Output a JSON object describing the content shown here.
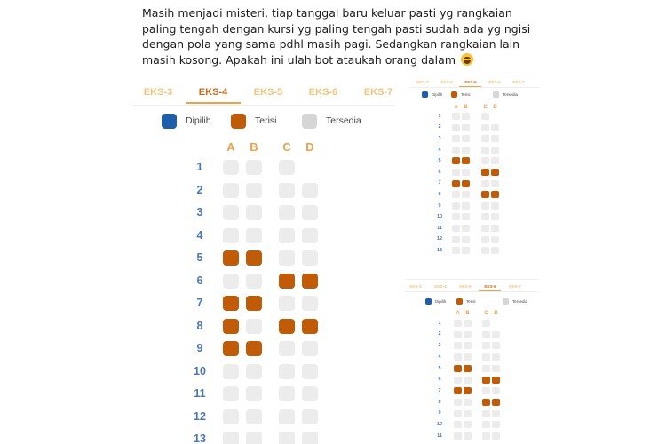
{
  "post": {
    "text": "Masih menjadi misteri, tiap tanggal baru keluar pasti yg rangkaian paling tengah dengan kursi yg paling tengah pasti sudah ada yg ngisi dengan pola yang sama pdhl masih pagi. Sedangkan rangkaian lain masih kosong. Apakah ini ulah bot ataukah orang dalam",
    "emoji": "grinning-sweat-face"
  },
  "seat_map_large": {
    "tabs": [
      "EKS-3",
      "EKS-4",
      "EKS-5",
      "EKS-6",
      "EKS-7"
    ],
    "active_tab": "EKS-4",
    "legend": [
      {
        "label": "Dipilih",
        "color": "#1d5fa8"
      },
      {
        "label": "Terisi",
        "color": "#c05c08"
      },
      {
        "label": "Tersedia",
        "color": "#d6d6d6"
      }
    ],
    "columns": [
      "A",
      "B",
      "C",
      "D"
    ],
    "rows": [
      "1",
      "2",
      "3",
      "4",
      "5",
      "6",
      "7",
      "8",
      "9",
      "10",
      "11",
      "12",
      "13"
    ],
    "seats": [
      [
        "kosong",
        "kosong",
        "kosong",
        null
      ],
      [
        "kosong",
        "kosong",
        "kosong",
        "kosong"
      ],
      [
        "kosong",
        "kosong",
        "kosong",
        "kosong"
      ],
      [
        "kosong",
        "kosong",
        "kosong",
        "kosong"
      ],
      [
        "terisi",
        "terisi",
        "kosong",
        "kosong"
      ],
      [
        "kosong",
        "kosong",
        "terisi",
        "terisi"
      ],
      [
        "terisi",
        "terisi",
        "kosong",
        "kosong"
      ],
      [
        "terisi",
        "kosong",
        "terisi",
        "terisi"
      ],
      [
        "terisi",
        "terisi",
        "kosong",
        "kosong"
      ],
      [
        "kosong",
        "kosong",
        "kosong",
        "kosong"
      ],
      [
        "kosong",
        "kosong",
        "kosong",
        "kosong"
      ],
      [
        "kosong",
        "kosong",
        "kosong",
        "kosong"
      ],
      [
        "kosong",
        "kosong",
        "kosong",
        "kosong"
      ]
    ]
  },
  "seat_map_top": {
    "tabs": [
      "EKS-3",
      "EKS-4",
      "EKS-5",
      "EKS-6",
      "EKS-7"
    ],
    "active_tab": "EKS-5",
    "legend": [
      {
        "label": "Dipilih",
        "color": "#1d5fa8"
      },
      {
        "label": "Terisi",
        "color": "#c05c08"
      },
      {
        "label": "Tersedia",
        "color": "#d6d6d6"
      }
    ],
    "columns": [
      "A",
      "B",
      "C",
      "D"
    ],
    "rows": [
      "1",
      "2",
      "3",
      "4",
      "5",
      "6",
      "7",
      "8",
      "9",
      "10",
      "11",
      "12",
      "13"
    ],
    "seats": [
      [
        "kosong",
        "kosong",
        "kosong",
        null
      ],
      [
        "kosong",
        "kosong",
        "kosong",
        "kosong"
      ],
      [
        "kosong",
        "kosong",
        "kosong",
        "kosong"
      ],
      [
        "kosong",
        "kosong",
        "kosong",
        "kosong"
      ],
      [
        "terisi",
        "terisi",
        "kosong",
        "kosong"
      ],
      [
        "kosong",
        "kosong",
        "terisi",
        "terisi"
      ],
      [
        "terisi",
        "terisi",
        "kosong",
        "kosong"
      ],
      [
        "kosong",
        "kosong",
        "terisi",
        "terisi"
      ],
      [
        "kosong",
        "kosong",
        "kosong",
        "kosong"
      ],
      [
        "kosong",
        "kosong",
        "kosong",
        "kosong"
      ],
      [
        "kosong",
        "kosong",
        "kosong",
        "kosong"
      ],
      [
        "kosong",
        "kosong",
        "kosong",
        "kosong"
      ],
      [
        "kosong",
        "kosong",
        "kosong",
        "kosong"
      ]
    ]
  },
  "seat_map_bottom": {
    "tabs": [
      "EKS-3",
      "EKS-4",
      "EKS-5",
      "EKS-6",
      "EKS-7"
    ],
    "active_tab": "EKS-6",
    "legend": [
      {
        "label": "Dipilih",
        "color": "#1d5fa8"
      },
      {
        "label": "Terisi",
        "color": "#c05c08"
      },
      {
        "label": "Tersedia",
        "color": "#d6d6d6"
      }
    ],
    "columns": [
      "A",
      "B",
      "C",
      "D"
    ],
    "rows": [
      "1",
      "2",
      "3",
      "4",
      "5",
      "6",
      "7",
      "8",
      "9",
      "10",
      "11"
    ],
    "seats": [
      [
        "kosong",
        "kosong",
        "kosong",
        null
      ],
      [
        "kosong",
        "kosong",
        "kosong",
        "kosong"
      ],
      [
        "kosong",
        "kosong",
        "kosong",
        "kosong"
      ],
      [
        "kosong",
        "kosong",
        "kosong",
        "kosong"
      ],
      [
        "terisi",
        "terisi",
        "kosong",
        "kosong"
      ],
      [
        "kosong",
        "kosong",
        "terisi",
        "terisi"
      ],
      [
        "terisi",
        "terisi",
        "kosong",
        "kosong"
      ],
      [
        "kosong",
        "kosong",
        "terisi",
        "terisi"
      ],
      [
        "kosong",
        "kosong",
        "kosong",
        "kosong"
      ],
      [
        "kosong",
        "kosong",
        "kosong",
        "kosong"
      ],
      [
        "kosong",
        "kosong",
        "kosong",
        "kosong"
      ]
    ]
  }
}
